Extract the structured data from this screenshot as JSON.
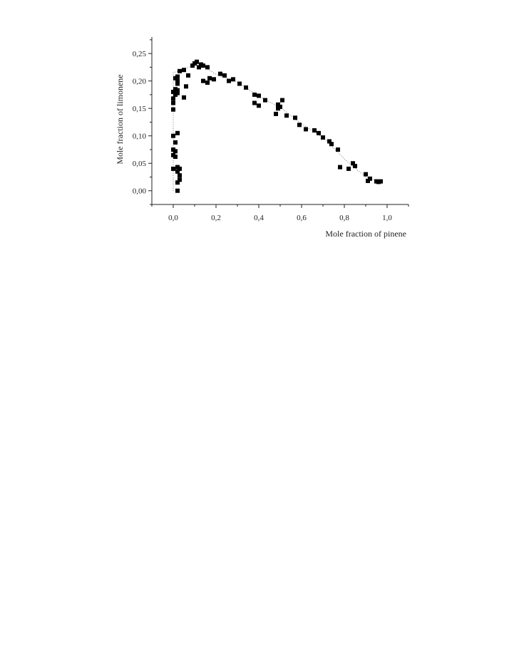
{
  "chart_data": {
    "type": "scatter",
    "title": "",
    "xlabel": "Mole fraction of pinene",
    "ylabel": "Mole fraction of limonene",
    "xlim": [
      -0.1,
      1.1
    ],
    "ylim": [
      -0.025,
      0.28
    ],
    "xticks": [
      0.0,
      0.2,
      0.4,
      0.6,
      0.8,
      1.0
    ],
    "xtick_labels": [
      "0,0",
      "0,2",
      "0,4",
      "0,6",
      "0,8",
      "1,0"
    ],
    "yticks": [
      0.0,
      0.05,
      0.1,
      0.15,
      0.2,
      0.25
    ],
    "ytick_labels": [
      "0,00",
      "0,05",
      "0,10",
      "0,15",
      "0,20",
      "0,25"
    ],
    "grid": false,
    "marker": "square",
    "color": "#000000",
    "guide_line": "dotted",
    "points": [
      [
        0.02,
        0.0
      ],
      [
        0.02,
        0.015
      ],
      [
        0.03,
        0.02
      ],
      [
        0.03,
        0.028
      ],
      [
        0.02,
        0.035
      ],
      [
        0.03,
        0.04
      ],
      [
        0.02,
        0.043
      ],
      [
        0.0,
        0.04
      ],
      [
        0.01,
        0.062
      ],
      [
        0.0,
        0.065
      ],
      [
        0.01,
        0.072
      ],
      [
        0.0,
        0.075
      ],
      [
        0.01,
        0.088
      ],
      [
        0.0,
        0.1
      ],
      [
        0.02,
        0.105
      ],
      [
        0.0,
        0.148
      ],
      [
        0.0,
        0.16
      ],
      [
        0.0,
        0.168
      ],
      [
        0.01,
        0.175
      ],
      [
        0.02,
        0.178
      ],
      [
        0.0,
        0.18
      ],
      [
        0.02,
        0.183
      ],
      [
        0.01,
        0.185
      ],
      [
        0.02,
        0.195
      ],
      [
        0.02,
        0.2
      ],
      [
        0.01,
        0.205
      ],
      [
        0.02,
        0.208
      ],
      [
        0.03,
        0.218
      ],
      [
        0.05,
        0.22
      ],
      [
        0.05,
        0.17
      ],
      [
        0.06,
        0.19
      ],
      [
        0.07,
        0.21
      ],
      [
        0.09,
        0.228
      ],
      [
        0.1,
        0.232
      ],
      [
        0.11,
        0.235
      ],
      [
        0.12,
        0.225
      ],
      [
        0.13,
        0.23
      ],
      [
        0.14,
        0.228
      ],
      [
        0.16,
        0.225
      ],
      [
        0.14,
        0.2
      ],
      [
        0.16,
        0.197
      ],
      [
        0.17,
        0.205
      ],
      [
        0.19,
        0.203
      ],
      [
        0.22,
        0.213
      ],
      [
        0.24,
        0.21
      ],
      [
        0.26,
        0.2
      ],
      [
        0.28,
        0.203
      ],
      [
        0.31,
        0.195
      ],
      [
        0.34,
        0.188
      ],
      [
        0.38,
        0.175
      ],
      [
        0.4,
        0.173
      ],
      [
        0.43,
        0.165
      ],
      [
        0.38,
        0.16
      ],
      [
        0.4,
        0.155
      ],
      [
        0.49,
        0.157
      ],
      [
        0.49,
        0.15
      ],
      [
        0.5,
        0.153
      ],
      [
        0.51,
        0.165
      ],
      [
        0.48,
        0.14
      ],
      [
        0.53,
        0.137
      ],
      [
        0.57,
        0.133
      ],
      [
        0.59,
        0.12
      ],
      [
        0.62,
        0.112
      ],
      [
        0.66,
        0.11
      ],
      [
        0.68,
        0.105
      ],
      [
        0.7,
        0.097
      ],
      [
        0.73,
        0.09
      ],
      [
        0.74,
        0.085
      ],
      [
        0.77,
        0.075
      ],
      [
        0.78,
        0.043
      ],
      [
        0.82,
        0.04
      ],
      [
        0.84,
        0.05
      ],
      [
        0.85,
        0.045
      ],
      [
        0.9,
        0.03
      ],
      [
        0.91,
        0.018
      ],
      [
        0.92,
        0.022
      ],
      [
        0.95,
        0.017
      ],
      [
        0.96,
        0.016
      ],
      [
        0.97,
        0.017
      ]
    ],
    "guide_points": [
      [
        0.0,
        0.0
      ],
      [
        0.0,
        0.215
      ],
      [
        0.05,
        0.222
      ],
      [
        0.12,
        0.232
      ],
      [
        0.2,
        0.212
      ],
      [
        0.3,
        0.198
      ],
      [
        0.4,
        0.172
      ],
      [
        0.5,
        0.152
      ],
      [
        0.6,
        0.122
      ],
      [
        0.7,
        0.097
      ],
      [
        0.8,
        0.058
      ],
      [
        0.9,
        0.025
      ],
      [
        0.97,
        0.016
      ]
    ]
  }
}
